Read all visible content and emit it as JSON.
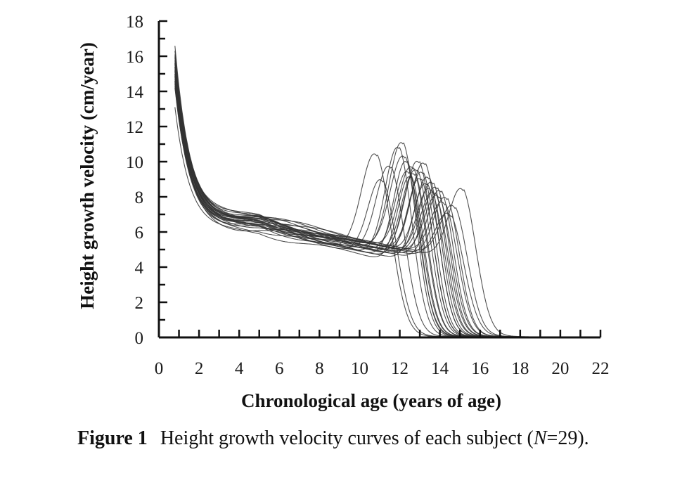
{
  "chart_data": {
    "type": "line",
    "title": "",
    "xlabel": "Chronological age (years of age)",
    "ylabel": "Height growth velocity (cm/year)",
    "xlim": [
      0,
      22
    ],
    "ylim": [
      0,
      18
    ],
    "xticks": [
      0,
      2,
      4,
      6,
      8,
      10,
      12,
      14,
      16,
      18,
      20,
      22
    ],
    "yticks": [
      0,
      2,
      4,
      6,
      8,
      10,
      12,
      14,
      16,
      18
    ],
    "grid": false,
    "legend": "none",
    "line_color": "#333333",
    "num_series": 29,
    "series_params": [
      {
        "v0": 16.6,
        "tail": 6.7,
        "peak_age": 10.9,
        "peak_height": 10.9,
        "width": 1.05
      },
      {
        "v0": 15.2,
        "tail": 6.5,
        "peak_age": 11.2,
        "peak_height": 9.4,
        "width": 1.0
      },
      {
        "v0": 15.8,
        "tail": 6.6,
        "peak_age": 11.6,
        "peak_height": 10.2,
        "width": 1.0
      },
      {
        "v0": 14.6,
        "tail": 6.4,
        "peak_age": 12.0,
        "peak_height": 11.3,
        "width": 0.95
      },
      {
        "v0": 16.0,
        "tail": 6.8,
        "peak_age": 12.2,
        "peak_height": 11.6,
        "width": 0.95
      },
      {
        "v0": 15.4,
        "tail": 6.9,
        "peak_age": 12.3,
        "peak_height": 10.8,
        "width": 1.0
      },
      {
        "v0": 14.2,
        "tail": 6.3,
        "peak_age": 12.4,
        "peak_height": 10.5,
        "width": 0.9
      },
      {
        "v0": 15.6,
        "tail": 6.6,
        "peak_age": 12.5,
        "peak_height": 9.9,
        "width": 0.95
      },
      {
        "v0": 13.1,
        "tail": 6.0,
        "peak_age": 12.6,
        "peak_height": 9.6,
        "width": 0.9
      },
      {
        "v0": 15.0,
        "tail": 7.0,
        "peak_age": 12.7,
        "peak_height": 10.2,
        "width": 0.95
      },
      {
        "v0": 16.3,
        "tail": 6.7,
        "peak_age": 12.8,
        "peak_height": 9.8,
        "width": 0.9
      },
      {
        "v0": 14.8,
        "tail": 6.2,
        "peak_age": 12.9,
        "peak_height": 10.0,
        "width": 0.95
      },
      {
        "v0": 15.5,
        "tail": 6.5,
        "peak_age": 13.0,
        "peak_height": 10.5,
        "width": 0.95
      },
      {
        "v0": 14.4,
        "tail": 6.4,
        "peak_age": 13.1,
        "peak_height": 9.5,
        "width": 0.9
      },
      {
        "v0": 15.9,
        "tail": 6.9,
        "peak_age": 13.2,
        "peak_height": 9.9,
        "width": 0.9
      },
      {
        "v0": 15.1,
        "tail": 6.6,
        "peak_age": 13.3,
        "peak_height": 10.4,
        "width": 0.95
      },
      {
        "v0": 14.9,
        "tail": 6.1,
        "peak_age": 13.4,
        "peak_height": 9.2,
        "width": 0.9
      },
      {
        "v0": 15.7,
        "tail": 6.8,
        "peak_age": 13.5,
        "peak_height": 9.6,
        "width": 0.9
      },
      {
        "v0": 14.5,
        "tail": 6.3,
        "peak_age": 13.6,
        "peak_height": 8.9,
        "width": 0.95
      },
      {
        "v0": 16.1,
        "tail": 6.7,
        "peak_age": 13.7,
        "peak_height": 9.3,
        "width": 0.9
      },
      {
        "v0": 15.3,
        "tail": 6.5,
        "peak_age": 13.8,
        "peak_height": 8.7,
        "width": 0.95
      },
      {
        "v0": 14.7,
        "tail": 6.4,
        "peak_age": 13.9,
        "peak_height": 9.0,
        "width": 0.9
      },
      {
        "v0": 15.2,
        "tail": 6.6,
        "peak_age": 14.0,
        "peak_height": 8.5,
        "width": 0.95
      },
      {
        "v0": 14.3,
        "tail": 6.2,
        "peak_age": 14.1,
        "peak_height": 8.8,
        "width": 0.9
      },
      {
        "v0": 15.6,
        "tail": 6.7,
        "peak_age": 14.3,
        "peak_height": 8.1,
        "width": 0.95
      },
      {
        "v0": 14.9,
        "tail": 6.5,
        "peak_age": 14.4,
        "peak_height": 8.4,
        "width": 0.9
      },
      {
        "v0": 15.4,
        "tail": 6.3,
        "peak_age": 14.6,
        "peak_height": 7.4,
        "width": 1.0
      },
      {
        "v0": 14.6,
        "tail": 6.6,
        "peak_age": 14.8,
        "peak_height": 7.9,
        "width": 0.95
      },
      {
        "v0": 15.0,
        "tail": 6.4,
        "peak_age": 15.2,
        "peak_height": 8.9,
        "width": 0.95
      }
    ]
  },
  "caption": {
    "label": "Figure 1",
    "text_before_n": "Height growth velocity curves of each subject (",
    "n_symbol": "N",
    "text_after_n": "=29)."
  }
}
